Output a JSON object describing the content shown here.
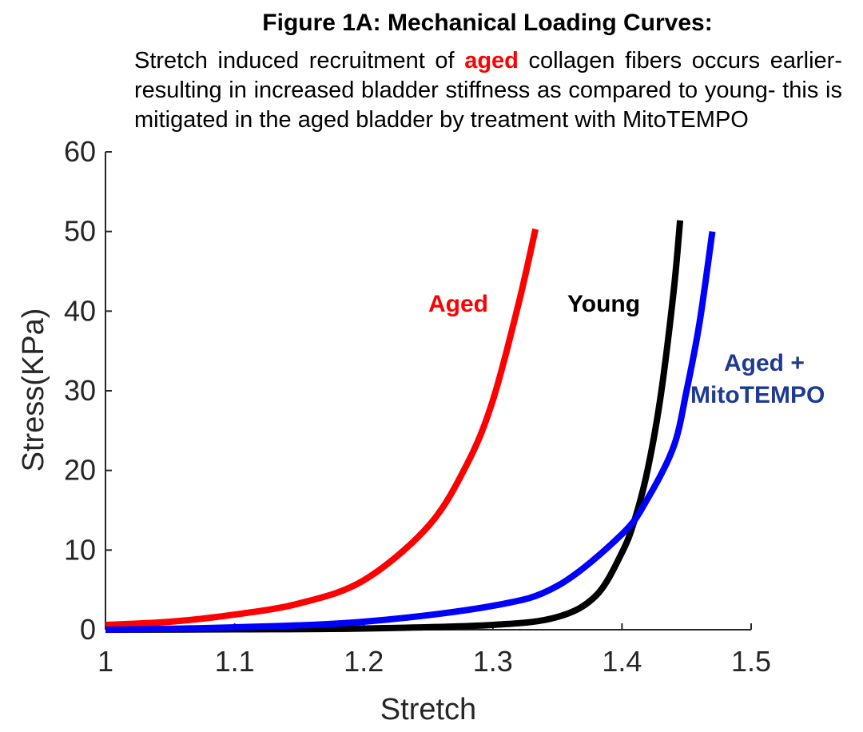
{
  "figure": {
    "title": "Figure 1A: Mechanical Loading Curves:",
    "subtitle_part1": "Stretch induced recruitment of ",
    "subtitle_highlight": "aged",
    "subtitle_part2": " collagen fibers occurs earlier- resulting in increased bladder stiffness as compared to young- this is mitigated in the aged bladder by treatment with MitoTEMPO"
  },
  "colors": {
    "aged": "#ff0000",
    "young": "#000000",
    "mito": "#0000ff",
    "axis": "#262626",
    "mito_label": "#1f3a93"
  },
  "chart_data": {
    "type": "line",
    "title": "Figure 1A: Mechanical Loading Curves:",
    "xlabel": "Stretch",
    "ylabel": "Stress(KPa)",
    "xlim": [
      1,
      1.5
    ],
    "ylim": [
      0,
      60
    ],
    "xticks": [
      "1",
      "1.1",
      "1.2",
      "1.3",
      "1.4",
      "1.5"
    ],
    "yticks": [
      "0",
      "10",
      "20",
      "30",
      "40",
      "50",
      "60"
    ],
    "grid": false,
    "legend": "inline labels",
    "series": [
      {
        "name": "Aged",
        "color": "#ff0000",
        "x": [
          1.0,
          1.05,
          1.1,
          1.15,
          1.2,
          1.25,
          1.28,
          1.3,
          1.32,
          1.333
        ],
        "y": [
          0.6,
          1.0,
          1.9,
          3.3,
          6.2,
          13.0,
          20.8,
          28.8,
          41.0,
          50.3
        ]
      },
      {
        "name": "Young",
        "color": "#000000",
        "x": [
          1.0,
          1.1,
          1.2,
          1.3,
          1.35,
          1.38,
          1.4,
          1.41,
          1.42,
          1.43,
          1.44,
          1.445
        ],
        "y": [
          0.0,
          0.05,
          0.15,
          0.6,
          1.6,
          4.3,
          9.7,
          13.9,
          20.2,
          29.4,
          42.5,
          51.4
        ]
      },
      {
        "name": "Aged + MitoTEMPO",
        "color": "#0000ff",
        "x": [
          1.0,
          1.1,
          1.2,
          1.3,
          1.35,
          1.4,
          1.42,
          1.44,
          1.45,
          1.46,
          1.47
        ],
        "y": [
          0.0,
          0.3,
          1.0,
          3.0,
          5.5,
          12.0,
          16.5,
          23.0,
          30.0,
          38.5,
          50.0
        ]
      }
    ],
    "annotations": [
      {
        "text": "Aged",
        "series": "Aged"
      },
      {
        "text": "Young",
        "series": "Young"
      },
      {
        "text": "Aged +",
        "series": "Aged + MitoTEMPO"
      },
      {
        "text": "MitoTEMPO",
        "series": "Aged + MitoTEMPO"
      }
    ]
  }
}
